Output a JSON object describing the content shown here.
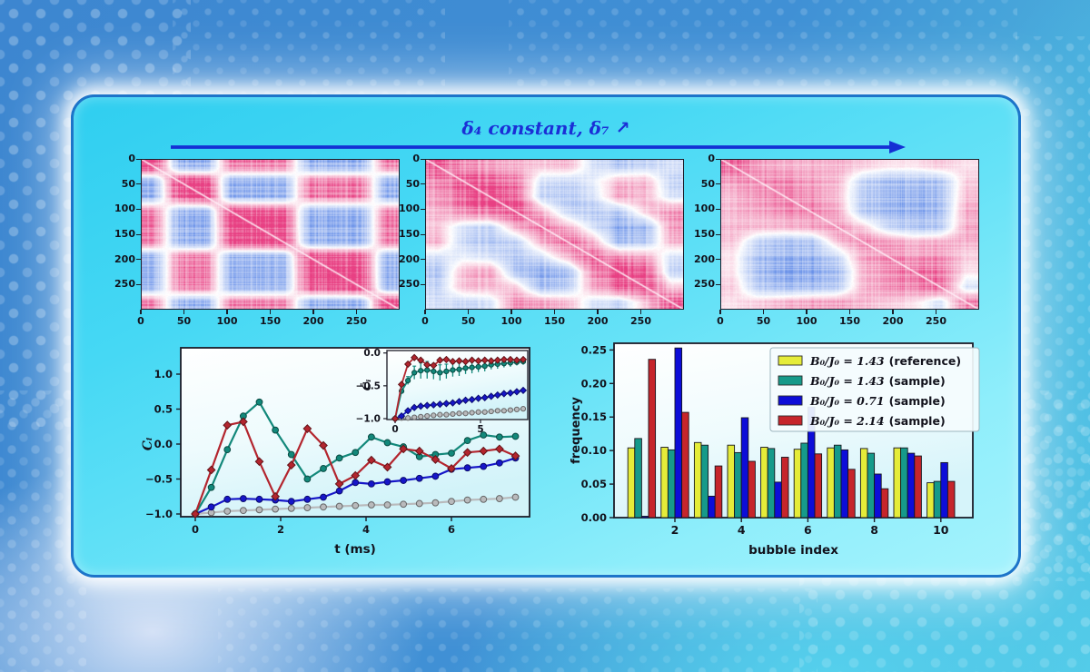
{
  "figure_title": {
    "text": "δ₄ constant, δ₇",
    "arrow": "↗"
  },
  "colors": {
    "title": "#1b2fd6",
    "panel_border": "#1d74c9",
    "flow_arrow": "#1430d4"
  },
  "chart_data": [
    {
      "type": "heatmap",
      "name": "correlation-matrix-left",
      "x_ticks": [
        "0",
        "50",
        "100",
        "150",
        "200",
        "250"
      ],
      "y_ticks": [
        "0",
        "50",
        "100",
        "150",
        "200",
        "250"
      ],
      "axis_range": [
        0,
        300
      ],
      "colormap": {
        "positive": "#e84083",
        "negative": "#6991e9",
        "zero": "#ffffff"
      },
      "values": [
        [
          1.0,
          -0.6,
          -0.6,
          0.6,
          0.6,
          0.6,
          -0.6,
          -0.6,
          -0.6,
          0.6
        ],
        [
          -0.6,
          1.0,
          0.9,
          -0.6,
          -0.6,
          -0.6,
          0.6,
          0.6,
          0.6,
          -0.6
        ],
        [
          -0.6,
          0.9,
          1.0,
          -0.6,
          -0.6,
          -0.6,
          0.6,
          0.6,
          0.6,
          -0.6
        ],
        [
          0.6,
          -0.6,
          -0.6,
          1.0,
          0.9,
          0.9,
          -0.6,
          -0.6,
          -0.6,
          0.6
        ],
        [
          0.6,
          -0.6,
          -0.6,
          0.9,
          1.0,
          0.9,
          -0.6,
          -0.6,
          -0.6,
          0.6
        ],
        [
          0.6,
          -0.6,
          -0.6,
          0.9,
          0.9,
          1.0,
          -0.6,
          -0.6,
          -0.6,
          0.6
        ],
        [
          -0.6,
          0.6,
          0.6,
          -0.6,
          -0.6,
          -0.6,
          1.0,
          0.9,
          0.9,
          -0.6
        ],
        [
          -0.6,
          0.6,
          0.6,
          -0.6,
          -0.6,
          -0.6,
          0.9,
          1.0,
          0.9,
          -0.6
        ],
        [
          -0.6,
          0.6,
          0.6,
          -0.6,
          -0.6,
          -0.6,
          0.9,
          0.9,
          1.0,
          -0.6
        ],
        [
          0.6,
          -0.6,
          -0.6,
          0.6,
          0.6,
          0.6,
          -0.6,
          -0.6,
          -0.6,
          1.0
        ]
      ]
    },
    {
      "type": "heatmap",
      "name": "correlation-matrix-middle",
      "x_ticks": [
        "0",
        "50",
        "100",
        "150",
        "200",
        "250"
      ],
      "y_ticks": [
        "0",
        "50",
        "100",
        "150",
        "200",
        "250"
      ],
      "axis_range": [
        0,
        300
      ],
      "colormap": {
        "positive": "#e84083",
        "negative": "#6991e9",
        "zero": "#ffffff"
      },
      "values": [
        [
          0.8,
          0.5,
          0.4,
          0.3,
          0.2,
          0.3,
          -0.2,
          -0.4,
          -0.3,
          -0.2
        ],
        [
          0.5,
          0.9,
          0.8,
          0.6,
          -0.2,
          -0.3,
          -0.1,
          0.3,
          0.3,
          -0.3
        ],
        [
          0.4,
          0.8,
          1.0,
          0.7,
          -0.3,
          -0.4,
          -0.2,
          0.4,
          0.3,
          -0.2
        ],
        [
          0.3,
          0.6,
          0.7,
          0.9,
          0.3,
          -0.3,
          -0.4,
          -0.4,
          0.2,
          0.5
        ],
        [
          0.2,
          -0.2,
          -0.3,
          0.3,
          0.6,
          0.3,
          -0.2,
          -0.6,
          -0.5,
          0.4
        ],
        [
          0.3,
          -0.3,
          -0.4,
          -0.3,
          0.3,
          0.7,
          0.3,
          -0.5,
          -0.4,
          0.3
        ],
        [
          -0.2,
          -0.1,
          -0.2,
          -0.4,
          -0.2,
          0.3,
          0.8,
          0.5,
          0.4,
          -0.2
        ],
        [
          -0.4,
          0.3,
          0.4,
          -0.4,
          -0.6,
          -0.5,
          0.5,
          1.0,
          0.8,
          -0.3
        ],
        [
          -0.3,
          0.3,
          0.3,
          0.2,
          -0.5,
          -0.4,
          0.4,
          0.8,
          0.9,
          0.2
        ],
        [
          -0.2,
          -0.3,
          -0.2,
          0.5,
          0.4,
          0.3,
          -0.2,
          -0.3,
          0.2,
          0.8
        ]
      ]
    },
    {
      "type": "heatmap",
      "name": "correlation-matrix-right",
      "x_ticks": [
        "0",
        "50",
        "100",
        "150",
        "200",
        "250"
      ],
      "y_ticks": [
        "0",
        "50",
        "100",
        "150",
        "200",
        "250"
      ],
      "axis_range": [
        0,
        300
      ],
      "colormap": {
        "positive": "#e84083",
        "negative": "#6991e9",
        "zero": "#ffffff"
      },
      "values": [
        [
          0.7,
          0.4,
          0.3,
          0.3,
          0.3,
          0.2,
          0.1,
          0.1,
          0.2,
          0.1
        ],
        [
          0.4,
          0.5,
          0.5,
          0.4,
          0.3,
          -0.3,
          -0.5,
          -0.5,
          -0.4,
          0.2
        ],
        [
          0.3,
          0.5,
          0.6,
          0.5,
          0.3,
          -0.4,
          -0.6,
          -0.7,
          -0.5,
          0.3
        ],
        [
          0.3,
          0.4,
          0.5,
          0.6,
          0.4,
          -0.4,
          -0.6,
          -0.7,
          -0.5,
          0.4
        ],
        [
          0.3,
          0.3,
          0.3,
          0.4,
          0.5,
          0.2,
          -0.3,
          -0.5,
          -0.4,
          0.4
        ],
        [
          0.2,
          -0.3,
          -0.4,
          -0.4,
          0.2,
          0.5,
          0.4,
          0.3,
          0.3,
          0.3
        ],
        [
          0.1,
          -0.5,
          -0.6,
          -0.6,
          -0.3,
          0.4,
          0.6,
          0.5,
          0.5,
          0.2
        ],
        [
          0.1,
          -0.5,
          -0.7,
          -0.7,
          -0.5,
          0.3,
          0.5,
          0.7,
          0.6,
          0.1
        ],
        [
          0.2,
          -0.4,
          -0.5,
          -0.5,
          -0.4,
          0.3,
          0.5,
          0.6,
          0.7,
          -0.2
        ],
        [
          0.1,
          0.2,
          0.3,
          0.4,
          0.4,
          0.3,
          0.2,
          0.1,
          -0.2,
          0.6
        ]
      ]
    },
    {
      "type": "line",
      "name": "bubble-correlation-vs-time",
      "xlabel": "t (ms)",
      "ylabel": "Cᵢ",
      "x_ticks": [
        "0",
        "2",
        "4",
        "6"
      ],
      "x_tick_vals": [
        0,
        2,
        4,
        6
      ],
      "y_ticks": [
        "1.0",
        "0.5",
        "0.0",
        "−0.5",
        "−1.0"
      ],
      "y_tick_vals": [
        1.0,
        0.5,
        0.0,
        -0.5,
        -1.0
      ],
      "x": [
        0,
        0.375,
        0.75,
        1.125,
        1.5,
        1.875,
        2.25,
        2.625,
        3,
        3.375,
        3.75,
        4.125,
        4.5,
        4.875,
        5.25,
        5.625,
        6,
        6.375,
        6.75,
        7.125,
        7.5
      ],
      "series": [
        {
          "name": "gray",
          "color": "#b9babc",
          "marker": "circle",
          "values": [
            -1.0,
            -0.98,
            -0.96,
            -0.95,
            -0.94,
            -0.93,
            -0.92,
            -0.91,
            -0.9,
            -0.89,
            -0.88,
            -0.87,
            -0.87,
            -0.86,
            -0.85,
            -0.84,
            -0.82,
            -0.8,
            -0.79,
            -0.78,
            -0.76
          ]
        },
        {
          "name": "blue",
          "color": "#1616c8",
          "marker": "circle",
          "values": [
            -1.0,
            -0.9,
            -0.79,
            -0.78,
            -0.79,
            -0.8,
            -0.82,
            -0.79,
            -0.76,
            -0.67,
            -0.55,
            -0.57,
            -0.54,
            -0.52,
            -0.49,
            -0.46,
            -0.36,
            -0.34,
            -0.32,
            -0.27,
            -0.2
          ]
        },
        {
          "name": "teal",
          "color": "#12887a",
          "marker": "circle",
          "values": [
            -1.0,
            -0.62,
            -0.08,
            0.4,
            0.6,
            0.2,
            -0.15,
            -0.5,
            -0.35,
            -0.2,
            -0.12,
            0.1,
            0.02,
            -0.04,
            -0.18,
            -0.15,
            -0.13,
            0.05,
            0.13,
            0.1,
            0.11
          ]
        },
        {
          "name": "red",
          "color": "#b3252e",
          "marker": "diamond",
          "values": [
            -1.0,
            -0.37,
            0.27,
            0.32,
            -0.25,
            -0.75,
            -0.3,
            0.22,
            -0.02,
            -0.57,
            -0.45,
            -0.23,
            -0.33,
            -0.07,
            -0.1,
            -0.22,
            -0.35,
            -0.12,
            -0.1,
            -0.07,
            -0.17
          ]
        }
      ],
      "inset": {
        "ylabel": "C̄ᵢ",
        "x_ticks": [
          "0",
          "5"
        ],
        "x_tick_vals": [
          0,
          5
        ],
        "y_ticks": [
          "0.0",
          "−0.5",
          "−1.0"
        ],
        "y_tick_vals": [
          0.0,
          -0.5,
          -1.0
        ],
        "series": [
          {
            "name": "gray",
            "color": "#b9babc",
            "marker": "circle",
            "values": [
              -1.0,
              -0.99,
              -0.99,
              -0.98,
              -0.97,
              -0.96,
              -0.95,
              -0.94,
              -0.94,
              -0.93,
              -0.92,
              -0.92,
              -0.91,
              -0.9,
              -0.9,
              -0.89,
              -0.88,
              -0.88,
              -0.87,
              -0.86,
              -0.85
            ]
          },
          {
            "name": "blue",
            "color": "#1616c8",
            "marker": "diamond",
            "values": [
              -1.0,
              -0.96,
              -0.88,
              -0.83,
              -0.81,
              -0.8,
              -0.79,
              -0.78,
              -0.77,
              -0.76,
              -0.74,
              -0.72,
              -0.71,
              -0.69,
              -0.68,
              -0.66,
              -0.64,
              -0.62,
              -0.61,
              -0.59,
              -0.57
            ]
          },
          {
            "name": "teal",
            "color": "#12887a",
            "marker": "circle",
            "errors": [
              0,
              0.03,
              0.06,
              0.1,
              0.12,
              0.13,
              0.12,
              0.12,
              0.11,
              0.1,
              0.1,
              0.09,
              0.09,
              0.08,
              0.08,
              0.07,
              0.07,
              0.06,
              0.06,
              0.05,
              0.05
            ],
            "values": [
              -1.0,
              -0.58,
              -0.42,
              -0.3,
              -0.27,
              -0.26,
              -0.28,
              -0.3,
              -0.28,
              -0.26,
              -0.25,
              -0.23,
              -0.22,
              -0.21,
              -0.2,
              -0.18,
              -0.17,
              -0.16,
              -0.15,
              -0.14,
              -0.13
            ]
          },
          {
            "name": "red",
            "color": "#b3252e",
            "marker": "diamond",
            "values": [
              -1.0,
              -0.48,
              -0.17,
              -0.07,
              -0.11,
              -0.18,
              -0.19,
              -0.11,
              -0.1,
              -0.13,
              -0.12,
              -0.13,
              -0.11,
              -0.12,
              -0.11,
              -0.12,
              -0.11,
              -0.1,
              -0.1,
              -0.11,
              -0.1
            ]
          }
        ]
      }
    },
    {
      "type": "bar",
      "name": "bubble-index-frequency",
      "xlabel": "bubble index",
      "ylabel": "frequency",
      "x_ticks": [
        "2",
        "4",
        "6",
        "8",
        "10"
      ],
      "x_tick_vals": [
        2,
        4,
        6,
        8,
        10
      ],
      "y_ticks": [
        "0.00",
        "0.05",
        "0.10",
        "0.15",
        "0.20",
        "0.25"
      ],
      "y_tick_vals": [
        0.0,
        0.05,
        0.1,
        0.15,
        0.2,
        0.25
      ],
      "categories": [
        1,
        2,
        3,
        4,
        5,
        6,
        7,
        8,
        9,
        10
      ],
      "ylim": [
        0,
        0.26
      ],
      "legend_position": "upper right",
      "series": [
        {
          "label_math": "B₀/J₀ = 1.43",
          "label_note": "(reference)",
          "color": "#e5ec39",
          "values": [
            0.104,
            0.105,
            0.112,
            0.108,
            0.105,
            0.102,
            0.104,
            0.103,
            0.104,
            0.052
          ]
        },
        {
          "label_math": "B₀/J₀ = 1.43",
          "label_note": "(sample)",
          "color": "#169a8a",
          "values": [
            0.118,
            0.101,
            0.108,
            0.097,
            0.103,
            0.111,
            0.108,
            0.096,
            0.104,
            0.054
          ]
        },
        {
          "label_math": "B₀/J₀ = 0.71",
          "label_note": "(sample)",
          "color": "#0d0dd8",
          "values": [
            0.002,
            0.253,
            0.032,
            0.149,
            0.053,
            0.165,
            0.101,
            0.065,
            0.096,
            0.082
          ]
        },
        {
          "label_math": "B₀/J₀ = 2.14",
          "label_note": "(sample)",
          "color": "#c6252b",
          "values": [
            0.236,
            0.157,
            0.077,
            0.084,
            0.09,
            0.095,
            0.072,
            0.043,
            0.092,
            0.054
          ]
        }
      ]
    }
  ]
}
